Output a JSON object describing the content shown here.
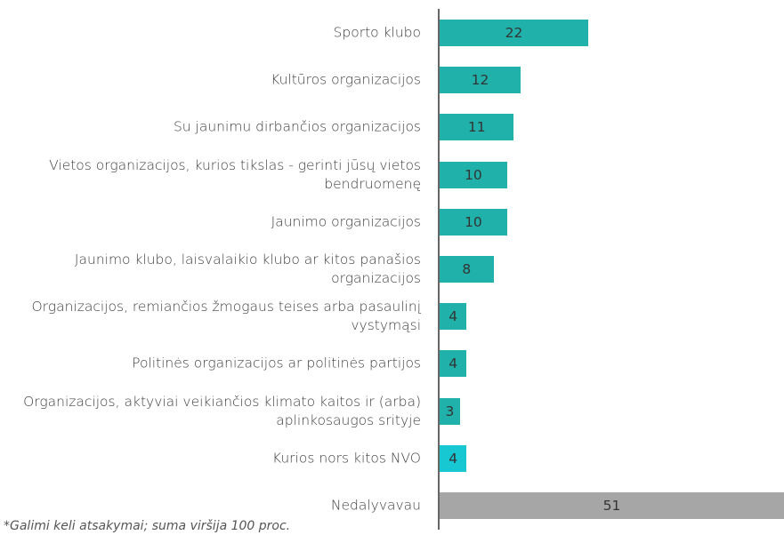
{
  "chart_data": {
    "type": "bar",
    "orientation": "horizontal",
    "categories": [
      "Sporto klubo",
      "Kultūros organizacijos",
      "Su jaunimu dirbančios organizacijos",
      "Vietos organizacijos, kurios tikslas - gerinti jūsų vietos bendruomenę",
      "Jaunimo organizacijos",
      "Jaunimo klubo, laisvalaikio klubo ar kitos panašios organizacijos",
      "Organizacijos, remiančios žmogaus teises arba pasaulinį vystymąsi",
      "Politinės organizacijos ar politinės partijos",
      "Organizacijos, aktyviai veikiančios klimato kaitos ir (arba) aplinkosaugos srityje",
      "Kurios nors kitos NVO",
      "Nedalyvavau"
    ],
    "values": [
      22,
      12,
      11,
      10,
      10,
      8,
      4,
      4,
      3,
      4,
      51
    ],
    "colors": [
      "#20b2aa",
      "#20b2aa",
      "#20b2aa",
      "#20b2aa",
      "#20b2aa",
      "#20b2aa",
      "#20b2aa",
      "#20b2aa",
      "#20b2aa",
      "#17c7d2",
      "#a6a6a6"
    ],
    "footnote": "*Galimi keli atsakymai; suma viršija 100 proc."
  }
}
